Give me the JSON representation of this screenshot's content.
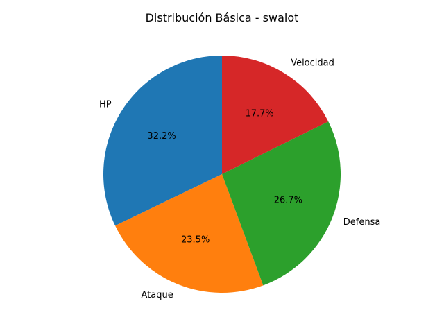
{
  "chart_data": {
    "type": "pie",
    "title": "Distribución Básica - swalot",
    "start_angle_deg": 90,
    "direction": "counterclockwise",
    "slices": [
      {
        "label": "HP",
        "value": 32.2,
        "pct_label": "32.2%",
        "color": "#1f77b4"
      },
      {
        "label": "Ataque",
        "value": 23.5,
        "pct_label": "23.5%",
        "color": "#ff7f0e"
      },
      {
        "label": "Defensa",
        "value": 26.7,
        "pct_label": "26.7%",
        "color": "#2ca02c"
      },
      {
        "label": "Velocidad",
        "value": 17.7,
        "pct_label": "17.7%",
        "color": "#d62728"
      }
    ]
  }
}
